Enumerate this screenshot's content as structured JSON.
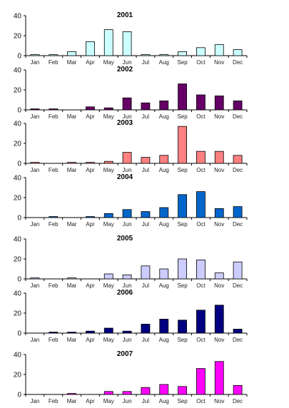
{
  "chart_data": [
    {
      "type": "bar",
      "title": "2001",
      "categories": [
        "Jan",
        "Feb",
        "Mar",
        "Apr",
        "May",
        "Jun",
        "Jul",
        "Aug",
        "Sep",
        "Oct",
        "Nov",
        "Dec"
      ],
      "values": [
        1,
        1,
        4,
        14,
        26,
        24,
        1,
        1,
        4,
        8,
        11,
        6
      ],
      "ylim": [
        0,
        40
      ],
      "yticks": [
        0,
        20,
        40
      ],
      "color": "#ccffff"
    },
    {
      "type": "bar",
      "title": "2002",
      "categories": [
        "Jan",
        "Feb",
        "Mar",
        "Apr",
        "May",
        "Jun",
        "Jul",
        "Aug",
        "Sep",
        "Oct",
        "Nov",
        "Dec"
      ],
      "values": [
        1,
        1,
        0,
        3,
        2,
        12,
        7,
        9,
        26,
        15,
        14,
        9
      ],
      "ylim": [
        0,
        40
      ],
      "yticks": [
        0,
        20,
        40
      ],
      "color": "#660066"
    },
    {
      "type": "bar",
      "title": "2003",
      "categories": [
        "Jan",
        "Feb",
        "Mar",
        "Apr",
        "May",
        "Jun",
        "Jul",
        "Aug",
        "Sep",
        "Oct",
        "Nov",
        "Dec"
      ],
      "values": [
        1,
        0,
        1,
        1,
        2,
        11,
        6,
        8,
        37,
        12,
        12,
        8
      ],
      "ylim": [
        0,
        40
      ],
      "yticks": [
        0,
        20,
        40
      ],
      "color": "#ff8080"
    },
    {
      "type": "bar",
      "title": "2004",
      "categories": [
        "Jan",
        "Feb",
        "Mar",
        "Apr",
        "May",
        "Jun",
        "Jul",
        "Aug",
        "Sep",
        "Oct",
        "Nov",
        "Dec"
      ],
      "values": [
        0,
        1,
        0,
        1,
        4,
        8,
        6,
        10,
        23,
        26,
        9,
        11
      ],
      "ylim": [
        0,
        40
      ],
      "yticks": [
        0,
        20,
        40
      ],
      "color": "#0066cc"
    },
    {
      "type": "bar",
      "title": "2005",
      "categories": [
        "Jan",
        "Feb",
        "Mar",
        "Apr",
        "May",
        "Jun",
        "Jul",
        "Aug",
        "Sep",
        "Oct",
        "Nov",
        "Dec"
      ],
      "values": [
        1,
        0,
        1,
        0,
        5,
        4,
        13,
        10,
        20,
        19,
        6,
        17
      ],
      "ylim": [
        0,
        40
      ],
      "yticks": [
        0,
        20,
        40
      ],
      "color": "#ccccff"
    },
    {
      "type": "bar",
      "title": "2006",
      "categories": [
        "Jan",
        "Feb",
        "Mar",
        "Apr",
        "May",
        "Jun",
        "Jul",
        "Aug",
        "Sep",
        "Oct",
        "Nov",
        "Dec"
      ],
      "values": [
        0,
        1,
        1,
        2,
        5,
        2,
        9,
        14,
        13,
        23,
        28,
        4
      ],
      "ylim": [
        0,
        40
      ],
      "yticks": [
        0,
        20,
        40
      ],
      "color": "#000080"
    },
    {
      "type": "bar",
      "title": "2007",
      "categories": [
        "Jan",
        "Feb",
        "Mar",
        "Apr",
        "May",
        "Jun",
        "Jul",
        "Aug",
        "Sep",
        "Oct",
        "Nov",
        "Dec"
      ],
      "values": [
        0,
        0,
        1,
        0,
        3,
        3,
        7,
        10,
        8,
        26,
        33,
        9
      ],
      "ylim": [
        0,
        40
      ],
      "yticks": [
        0,
        20,
        40
      ],
      "color": "#ff00ff"
    }
  ]
}
